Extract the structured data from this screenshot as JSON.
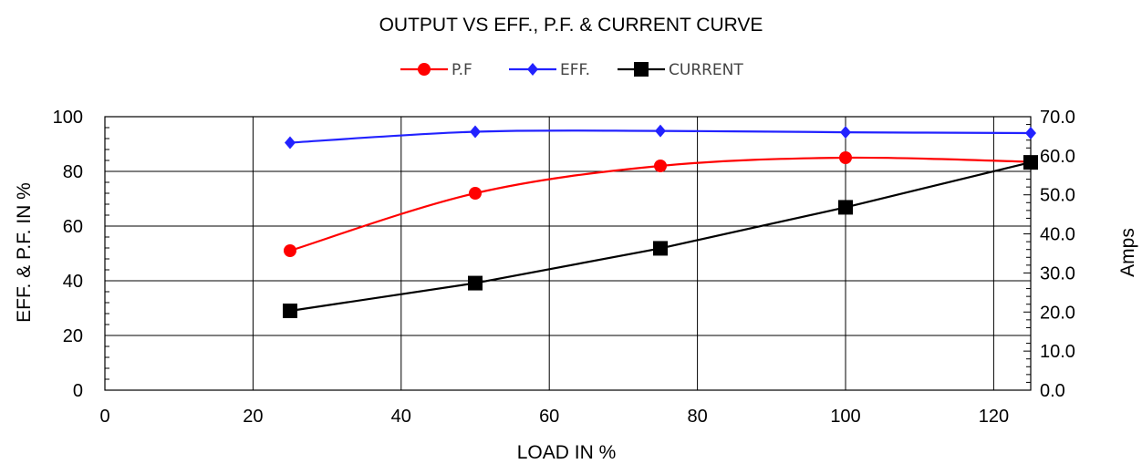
{
  "chart_data": {
    "type": "line",
    "title": "OUTPUT VS EFF., P.F. & CURRENT CURVE",
    "xlabel": "LOAD IN %",
    "ylabel": "EFF. & P.F. IN %",
    "y2label": "Amps",
    "xlim": [
      0,
      125
    ],
    "ylim": [
      0,
      100
    ],
    "y2lim": [
      0,
      70
    ],
    "x_ticks": [
      "0",
      "20",
      "40",
      "60",
      "80",
      "100",
      "120"
    ],
    "y_ticks": [
      "0",
      "20",
      "40",
      "60",
      "80",
      "100"
    ],
    "y2_ticks": [
      "0.0",
      "10.0",
      "20.0",
      "30.0",
      "40.0",
      "50.0",
      "60.0",
      "70.0"
    ],
    "grid": true,
    "legend_position": "top-center",
    "series": [
      {
        "name": "P.F",
        "axis": "left",
        "color": "#ff0000",
        "marker": "circle",
        "x": [
          25,
          50,
          75,
          100,
          125
        ],
        "y": [
          51,
          72,
          82,
          85,
          83.5
        ]
      },
      {
        "name": "EFF.",
        "axis": "left",
        "color": "#2222ff",
        "marker": "diamond",
        "x": [
          25,
          50,
          75,
          100,
          125
        ],
        "y": [
          90.5,
          94.5,
          94.8,
          94.3,
          94.0
        ]
      },
      {
        "name": "CURRENT",
        "axis": "right",
        "color": "#000000",
        "marker": "square",
        "x": [
          25,
          50,
          75,
          100,
          125
        ],
        "y": [
          20.3,
          27.4,
          36.3,
          46.8,
          58.3
        ]
      }
    ]
  }
}
